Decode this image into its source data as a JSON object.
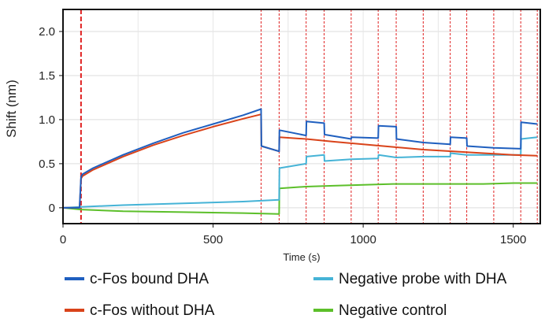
{
  "chart_data": {
    "type": "line",
    "xlabel": "Time (s)",
    "ylabel": "Shift (nm)",
    "xlim": [
      0,
      1590
    ],
    "ylim": [
      -0.18,
      2.25
    ],
    "x_ticks": [
      0,
      500,
      1000,
      1500
    ],
    "x_tick_labels": [
      "0",
      "500",
      "1000",
      "1500"
    ],
    "y_ticks": [
      0,
      0.5,
      1.0,
      1.5,
      2.0
    ],
    "y_tick_labels": [
      "0",
      "0.5",
      "1.0",
      "1.5",
      "2.0"
    ],
    "grid": true,
    "legend_position": "bottom",
    "step_markers": [
      60,
      660,
      720,
      810,
      870,
      960,
      1050,
      1110,
      1200,
      1290,
      1345,
      1435,
      1525,
      1580
    ],
    "series": [
      {
        "name": "c-Fos bound DHA",
        "color": "#1f5fbf",
        "x": [
          0,
          55,
          60,
          65,
          100,
          200,
          300,
          400,
          500,
          600,
          660,
          661,
          720,
          721,
          810,
          811,
          870,
          871,
          960,
          961,
          1050,
          1051,
          1110,
          1111,
          1200,
          1290,
          1291,
          1345,
          1346,
          1435,
          1525,
          1526,
          1580
        ],
        "y": [
          0,
          0,
          0.35,
          0.38,
          0.45,
          0.6,
          0.73,
          0.85,
          0.95,
          1.05,
          1.12,
          0.7,
          0.64,
          0.88,
          0.82,
          0.98,
          0.96,
          0.83,
          0.78,
          0.8,
          0.79,
          0.93,
          0.92,
          0.78,
          0.74,
          0.72,
          0.8,
          0.79,
          0.7,
          0.68,
          0.67,
          0.97,
          0.95
        ]
      },
      {
        "name": "c-Fos without DHA",
        "color": "#d9431a",
        "x": [
          0,
          55,
          60,
          65,
          100,
          200,
          300,
          400,
          500,
          600,
          660,
          661,
          720,
          721,
          810,
          900,
          1000,
          1100,
          1200,
          1300,
          1400,
          1500,
          1580
        ],
        "y": [
          0,
          0,
          0.33,
          0.36,
          0.43,
          0.58,
          0.71,
          0.82,
          0.92,
          1.01,
          1.06,
          0.7,
          0.64,
          0.8,
          0.78,
          0.75,
          0.72,
          0.69,
          0.66,
          0.64,
          0.62,
          0.6,
          0.59
        ]
      },
      {
        "name": "Negative probe with DHA",
        "color": "#45b3d6",
        "x": [
          0,
          60,
          200,
          400,
          600,
          720,
          721,
          810,
          811,
          870,
          871,
          960,
          1050,
          1051,
          1110,
          1200,
          1290,
          1291,
          1345,
          1435,
          1525,
          1526,
          1580
        ],
        "y": [
          0,
          0.01,
          0.03,
          0.05,
          0.07,
          0.09,
          0.45,
          0.5,
          0.58,
          0.6,
          0.53,
          0.55,
          0.56,
          0.6,
          0.57,
          0.58,
          0.58,
          0.62,
          0.6,
          0.6,
          0.6,
          0.78,
          0.8
        ]
      },
      {
        "name": "Negative control",
        "color": "#5cbf2a",
        "x": [
          0,
          60,
          200,
          400,
          600,
          720,
          721,
          810,
          900,
          1000,
          1100,
          1200,
          1300,
          1400,
          1500,
          1580
        ],
        "y": [
          0,
          -0.02,
          -0.04,
          -0.05,
          -0.06,
          -0.07,
          0.22,
          0.24,
          0.25,
          0.26,
          0.27,
          0.27,
          0.27,
          0.27,
          0.28,
          0.28
        ]
      }
    ]
  }
}
